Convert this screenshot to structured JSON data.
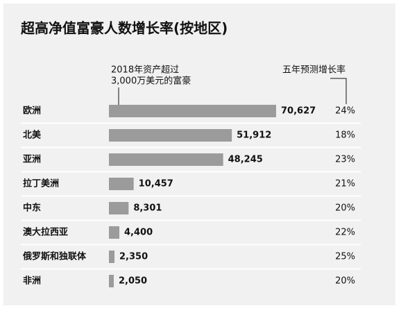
{
  "chart_data": {
    "type": "bar",
    "title": "超高净值富豪人数增长率(按地区)",
    "categories": [
      "欧洲",
      "北美",
      "亚洲",
      "拉丁美洲",
      "中东",
      "澳大拉西亚",
      "俄罗斯和独联体",
      "非洲"
    ],
    "series": [
      {
        "name": [
          "2018年资产超过",
          "3,000万美元的富豪"
        ],
        "color": "#9b9b9b",
        "values": [
          70627,
          51912,
          48245,
          10457,
          8301,
          4400,
          2350,
          2050
        ],
        "value_labels": [
          "70,627",
          "51,912",
          "48,245",
          "10,457",
          "8,301",
          "4,400",
          "2,350",
          "2,050"
        ]
      },
      {
        "name": "五年预测增长率",
        "values": [
          24,
          18,
          23,
          21,
          20,
          22,
          25,
          20
        ],
        "value_labels": [
          "24%",
          "18%",
          "23%",
          "21%",
          "20%",
          "22%",
          "25%",
          "20%"
        ]
      }
    ]
  }
}
